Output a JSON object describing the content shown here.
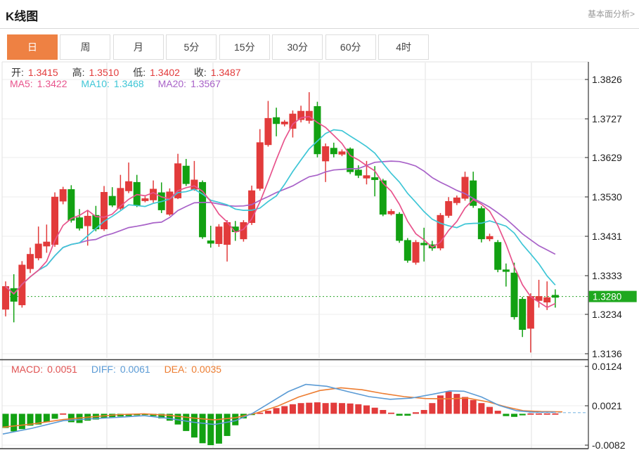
{
  "header": {
    "title": "K线图",
    "link": "基本面分析>"
  },
  "tabs": [
    {
      "label": "日",
      "active": true
    },
    {
      "label": "周",
      "active": false
    },
    {
      "label": "月",
      "active": false
    },
    {
      "label": "5分",
      "active": false
    },
    {
      "label": "15分",
      "active": false
    },
    {
      "label": "30分",
      "active": false
    },
    {
      "label": "60分",
      "active": false
    },
    {
      "label": "4时",
      "active": false
    }
  ],
  "legend": {
    "ohlc": [
      {
        "label": "开:",
        "value": "1.3415"
      },
      {
        "label": "高:",
        "value": "1.3510"
      },
      {
        "label": "低:",
        "value": "1.3402"
      },
      {
        "label": "收:",
        "value": "1.3487"
      }
    ],
    "ma": [
      {
        "label": "MA5:",
        "value": "1.3422",
        "color": "#e8538c"
      },
      {
        "label": "MA10:",
        "value": "1.3468",
        "color": "#3ec6d6"
      },
      {
        "label": "MA20:",
        "value": "1.3567",
        "color": "#a862c8"
      }
    ],
    "macd": [
      {
        "label": "MACD:",
        "value": "0.0051",
        "color": "#e05252"
      },
      {
        "label": "DIFF:",
        "value": "0.0061",
        "color": "#5b9bd5"
      },
      {
        "label": "DEA:",
        "value": "0.0035",
        "color": "#ed7d31"
      }
    ]
  },
  "chart_data": {
    "type": "candlestick",
    "title": "K线图 daily candlestick with MA5/MA10/MA20 and MACD sub-chart",
    "price_panel": {
      "y_ticks": [
        "1.3826",
        "1.3727",
        "1.3629",
        "1.3530",
        "1.3431",
        "1.3333",
        "1.3234",
        "1.3136"
      ],
      "ylim": [
        1.3136,
        1.3826
      ],
      "current_price_label": "1.3280",
      "current_price": 1.328,
      "candles_format": "[open, close, high, low]; close>=open drawn red (up), close<open drawn green (down)",
      "candles": [
        [
          1.3248,
          1.3305,
          1.3318,
          1.323
        ],
        [
          1.33,
          1.3268,
          1.3336,
          1.3215
        ],
        [
          1.3259,
          1.3359,
          1.3369,
          1.3252
        ],
        [
          1.335,
          1.3386,
          1.3403,
          1.3339
        ],
        [
          1.3377,
          1.3412,
          1.3456,
          1.3371
        ],
        [
          1.3407,
          1.3417,
          1.3461,
          1.339
        ],
        [
          1.3411,
          1.353,
          1.3542,
          1.3405
        ],
        [
          1.352,
          1.3549,
          1.3556,
          1.3512
        ],
        [
          1.3549,
          1.3472,
          1.356,
          1.3466
        ],
        [
          1.3478,
          1.3452,
          1.35,
          1.3446
        ],
        [
          1.3458,
          1.3482,
          1.3495,
          1.3408
        ],
        [
          1.3484,
          1.345,
          1.3508,
          1.3444
        ],
        [
          1.345,
          1.3542,
          1.3558,
          1.3445
        ],
        [
          1.3532,
          1.351,
          1.3555,
          1.3505
        ],
        [
          1.3502,
          1.3552,
          1.3586,
          1.3498
        ],
        [
          1.3546,
          1.3569,
          1.3617,
          1.354
        ],
        [
          1.3567,
          1.351,
          1.3586,
          1.3505
        ],
        [
          1.3521,
          1.3526,
          1.3532,
          1.3517
        ],
        [
          1.3523,
          1.355,
          1.3572,
          1.3516
        ],
        [
          1.3541,
          1.3498,
          1.3567,
          1.349
        ],
        [
          1.3487,
          1.3543,
          1.3552,
          1.3483
        ],
        [
          1.3528,
          1.3614,
          1.3639,
          1.3525
        ],
        [
          1.3608,
          1.3564,
          1.3626,
          1.3558
        ],
        [
          1.355,
          1.3573,
          1.3621,
          1.3546
        ],
        [
          1.3567,
          1.343,
          1.3572,
          1.3425
        ],
        [
          1.342,
          1.3414,
          1.3458,
          1.3403
        ],
        [
          1.3413,
          1.3455,
          1.3462,
          1.3405
        ],
        [
          1.3411,
          1.3466,
          1.3472,
          1.3368
        ],
        [
          1.3455,
          1.3443,
          1.347,
          1.342
        ],
        [
          1.3425,
          1.3466,
          1.3472,
          1.3418
        ],
        [
          1.3466,
          1.3546,
          1.3559,
          1.346
        ],
        [
          1.3552,
          1.3667,
          1.3701,
          1.3546
        ],
        [
          1.3662,
          1.3728,
          1.3772,
          1.3657
        ],
        [
          1.373,
          1.3715,
          1.3755,
          1.3683
        ],
        [
          1.3714,
          1.3719,
          1.3724,
          1.3708
        ],
        [
          1.3703,
          1.3739,
          1.3748,
          1.368
        ],
        [
          1.3725,
          1.3746,
          1.376,
          1.3718
        ],
        [
          1.3723,
          1.3746,
          1.3794,
          1.3715
        ],
        [
          1.3758,
          1.3639,
          1.377,
          1.363
        ],
        [
          1.3621,
          1.3657,
          1.3665,
          1.3568
        ],
        [
          1.3653,
          1.3639,
          1.3667,
          1.363
        ],
        [
          1.3638,
          1.3644,
          1.365,
          1.3633
        ],
        [
          1.3651,
          1.3594,
          1.3655,
          1.3588
        ],
        [
          1.3598,
          1.3585,
          1.361,
          1.3578
        ],
        [
          1.3578,
          1.3584,
          1.3621,
          1.3562
        ],
        [
          1.3579,
          1.3574,
          1.3608,
          1.3532
        ],
        [
          1.3571,
          1.3487,
          1.3576,
          1.3482
        ],
        [
          1.3488,
          1.3494,
          1.35,
          1.3484
        ],
        [
          1.3487,
          1.3421,
          1.3492,
          1.3415
        ],
        [
          1.3421,
          1.3371,
          1.3427,
          1.3365
        ],
        [
          1.3366,
          1.3416,
          1.3422,
          1.336
        ],
        [
          1.3414,
          1.341,
          1.3453,
          1.3368
        ],
        [
          1.341,
          1.3402,
          1.342,
          1.3395
        ],
        [
          1.3402,
          1.3484,
          1.349,
          1.3396
        ],
        [
          1.3484,
          1.3519,
          1.353,
          1.3478
        ],
        [
          1.3516,
          1.3528,
          1.3534,
          1.351
        ],
        [
          1.3527,
          1.358,
          1.3594,
          1.3521
        ],
        [
          1.3571,
          1.3509,
          1.3594,
          1.3503
        ],
        [
          1.3501,
          1.3425,
          1.3507,
          1.3416
        ],
        [
          1.3425,
          1.3431,
          1.3438,
          1.3419
        ],
        [
          1.3416,
          1.3348,
          1.3422,
          1.3341
        ],
        [
          1.3347,
          1.3343,
          1.3363,
          1.3305
        ],
        [
          1.3339,
          1.3229,
          1.3365,
          1.3222
        ],
        [
          1.3273,
          1.3197,
          1.3279,
          1.3178
        ],
        [
          1.32,
          1.328,
          1.3288,
          1.3139
        ],
        [
          1.327,
          1.328,
          1.3322,
          1.3252
        ],
        [
          1.3266,
          1.3277,
          1.3318,
          1.3246
        ],
        [
          1.3283,
          1.3278,
          1.3298,
          1.3252
        ]
      ],
      "moving_averages": {
        "note": "MA5/MA10/MA20 computed from closes",
        "periods": [
          5,
          10,
          20
        ]
      }
    },
    "macd_panel": {
      "y_ticks": [
        "0.0124",
        "0.0021",
        "-0.0082"
      ],
      "tick_values": [
        0.0124,
        0.0021,
        -0.0082
      ],
      "hist": [
        -0.0037,
        -0.0046,
        -0.004,
        -0.0031,
        -0.0028,
        -0.0022,
        -0.0013,
        0.0001,
        -0.0022,
        -0.0024,
        -0.0018,
        -0.0015,
        -0.0012,
        -0.0009,
        -0.0007,
        -0.0006,
        -0.0004,
        -0.0003,
        -0.0006,
        -0.0012,
        -0.0018,
        -0.0028,
        -0.0045,
        -0.0062,
        -0.0077,
        -0.0082,
        -0.0078,
        -0.0058,
        -0.003,
        -0.0012,
        -0.0002,
        0.0003,
        0.0008,
        0.0015,
        0.002,
        0.0025,
        0.0028,
        0.0029,
        0.003,
        0.0028,
        0.0029,
        0.0028,
        0.0027,
        0.0025,
        0.0022,
        0.0016,
        0.001,
        0.0003,
        -0.0005,
        -0.0005,
        0.0004,
        0.001,
        0.0028,
        0.0048,
        0.0058,
        0.0052,
        0.0044,
        0.0036,
        0.0028,
        0.0018,
        0.0008,
        -0.0006,
        -0.0008,
        -0.0004,
        0.0001,
        0.0001,
        0.0001,
        0.0001
      ],
      "diff_line": [
        [
          4,
          -0.0053
        ],
        [
          45,
          -0.0038
        ],
        [
          90,
          -0.0018
        ],
        [
          130,
          -0.0013
        ],
        [
          170,
          -0.0009
        ],
        [
          205,
          -0.0005
        ],
        [
          240,
          -0.0012
        ],
        [
          275,
          -0.0022
        ],
        [
          305,
          -0.0028
        ],
        [
          335,
          -0.0018
        ],
        [
          360,
          0.0002
        ],
        [
          385,
          0.003
        ],
        [
          410,
          0.0058
        ],
        [
          435,
          0.0077
        ],
        [
          465,
          0.0072
        ],
        [
          495,
          0.0058
        ],
        [
          525,
          0.0045
        ],
        [
          555,
          0.0038
        ],
        [
          585,
          0.0041
        ],
        [
          615,
          0.0051
        ],
        [
          640,
          0.006
        ],
        [
          660,
          0.0059
        ],
        [
          685,
          0.0044
        ],
        [
          710,
          0.0022
        ],
        [
          735,
          0.0008
        ],
        [
          760,
          0.0004
        ],
        [
          790,
          0.0004
        ]
      ],
      "dea_line": [
        [
          4,
          -0.0035
        ],
        [
          45,
          -0.0027
        ],
        [
          90,
          -0.0015
        ],
        [
          130,
          -0.0008
        ],
        [
          170,
          -0.0002
        ],
        [
          205,
          0.0
        ],
        [
          240,
          -0.0004
        ],
        [
          275,
          -0.0011
        ],
        [
          305,
          -0.0016
        ],
        [
          335,
          -0.001
        ],
        [
          365,
          0.0002
        ],
        [
          395,
          0.002
        ],
        [
          425,
          0.0044
        ],
        [
          455,
          0.0061
        ],
        [
          485,
          0.0068
        ],
        [
          515,
          0.0063
        ],
        [
          545,
          0.0053
        ],
        [
          575,
          0.0045
        ],
        [
          605,
          0.004
        ],
        [
          635,
          0.0039
        ],
        [
          665,
          0.0041
        ],
        [
          695,
          0.0031
        ],
        [
          720,
          0.0018
        ],
        [
          745,
          0.0008
        ],
        [
          770,
          0.0006
        ],
        [
          800,
          0.0005
        ]
      ],
      "dashed_extension_value": 0.0003
    },
    "colors": {
      "up": "#e23b3b",
      "down": "#12a112",
      "ma5": "#e8538c",
      "ma10": "#3ec6d6",
      "ma20": "#a862c8",
      "diff": "#5b9bd5",
      "dea": "#ed7d31",
      "current_line": "#2ba52b",
      "badge": "#1fa81f",
      "grid": "#ececec",
      "vgrid": "#e2e2e2",
      "axis": "#444",
      "tick_text": "#222",
      "dashed_ext": "#8fc3e8"
    }
  }
}
